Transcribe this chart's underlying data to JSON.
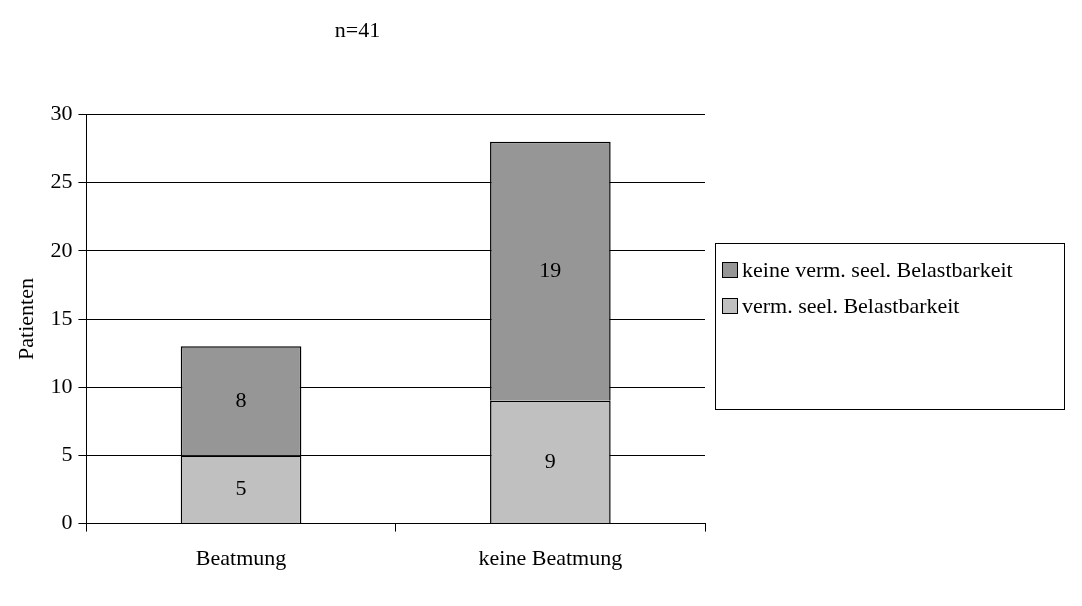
{
  "chart_data": {
    "type": "bar",
    "title": "n=41",
    "ylabel": "Patienten",
    "categories": [
      "Beatmung",
      "keine Beatmung"
    ],
    "stacked": true,
    "series": [
      {
        "name": "verm. seel. Belastbarkeit",
        "color": "#c0c0c0",
        "values": [
          5,
          9
        ]
      },
      {
        "name": "keine verm. seel. Belastbarkeit",
        "color": "#969696",
        "values": [
          8,
          19
        ]
      }
    ],
    "ylim": [
      0,
      30
    ],
    "yticks": [
      0,
      5,
      10,
      15,
      20,
      25,
      30
    ],
    "grid": "y",
    "legend": "right",
    "data_labels": true
  }
}
